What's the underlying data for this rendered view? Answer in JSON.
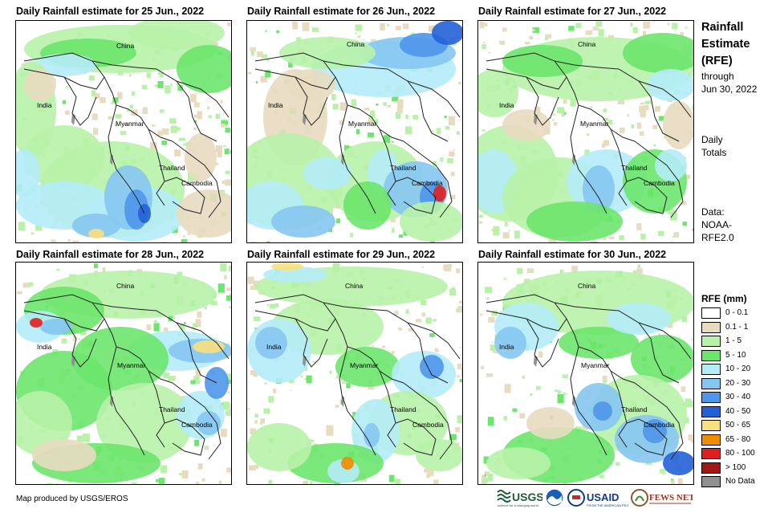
{
  "panels": [
    {
      "title": "Daily Rainfall estimate for 25 Jun., 2022"
    },
    {
      "title": "Daily Rainfall estimate for 26 Jun., 2022"
    },
    {
      "title": "Daily Rainfall estimate for 27 Jun., 2022"
    },
    {
      "title": "Daily Rainfall estimate for 28 Jun., 2022"
    },
    {
      "title": "Daily Rainfall estimate for 29 Jun., 2022"
    },
    {
      "title": "Daily Rainfall estimate for 30 Jun., 2022"
    }
  ],
  "places": {
    "china": "China",
    "india": "India",
    "myanmar": "Myanmar",
    "thailand": "Thailand",
    "cambodia": "Cambodia"
  },
  "side": {
    "title_line1": "Rainfall",
    "title_line2": "Estimate",
    "title_line3": "(RFE)",
    "through_label": "through",
    "through_date": "Jun 30, 2022",
    "daily_line1": "Daily",
    "daily_line2": "Totals",
    "data_line1": "Data:",
    "data_line2": "NOAA-",
    "data_line3": "RFE2.0"
  },
  "legend": {
    "title": "RFE (mm)",
    "items": [
      {
        "label": "0 - 0.1",
        "color": "#ffffff"
      },
      {
        "label": "0.1 - 1",
        "color": "#e8dcc0"
      },
      {
        "label": "1 - 5",
        "color": "#b8f2a8"
      },
      {
        "label": "5 - 10",
        "color": "#6ce66c"
      },
      {
        "label": "10 - 20",
        "color": "#b4ecf8"
      },
      {
        "label": "20 - 30",
        "color": "#86c6f2"
      },
      {
        "label": "30 - 40",
        "color": "#4f96ea"
      },
      {
        "label": "40 - 50",
        "color": "#2460d8"
      },
      {
        "label": "50 - 65",
        "color": "#f8e080"
      },
      {
        "label": "65 - 80",
        "color": "#f08c00"
      },
      {
        "label": "80 - 100",
        "color": "#e02020"
      },
      {
        "label": "> 100",
        "color": "#a01818"
      },
      {
        "label": "No Data",
        "color": "#909090"
      }
    ]
  },
  "footer": {
    "credit": "Map produced by USGS/EROS"
  },
  "logos": {
    "usgs": "USGS",
    "usaid": "USAID",
    "fewsnet": "FEWS NET"
  }
}
